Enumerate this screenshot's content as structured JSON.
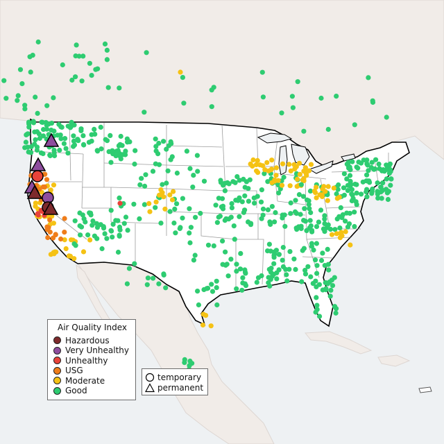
{
  "legend_aqi": {
    "title": "Air Quality Index",
    "items": [
      {
        "label": "Hazardous",
        "color": "#7e2a2c"
      },
      {
        "label": "Very Unhealthy",
        "color": "#8e4d9e"
      },
      {
        "label": "Unhealthy",
        "color": "#e8433a"
      },
      {
        "label": "USG",
        "color": "#ef7d1a"
      },
      {
        "label": "Moderate",
        "color": "#f5c214"
      },
      {
        "label": "Good",
        "color": "#2ecc71"
      }
    ]
  },
  "legend_type": {
    "items": [
      {
        "label": "temporary",
        "icon": "circle-icon"
      },
      {
        "label": "permanent",
        "icon": "triangle-icon"
      }
    ]
  },
  "colors": {
    "land_us": "#ffffff",
    "land_other": "#f0ece8",
    "water": "#eef1f3",
    "outline": "#000000",
    "state_lines": "#999999"
  }
}
